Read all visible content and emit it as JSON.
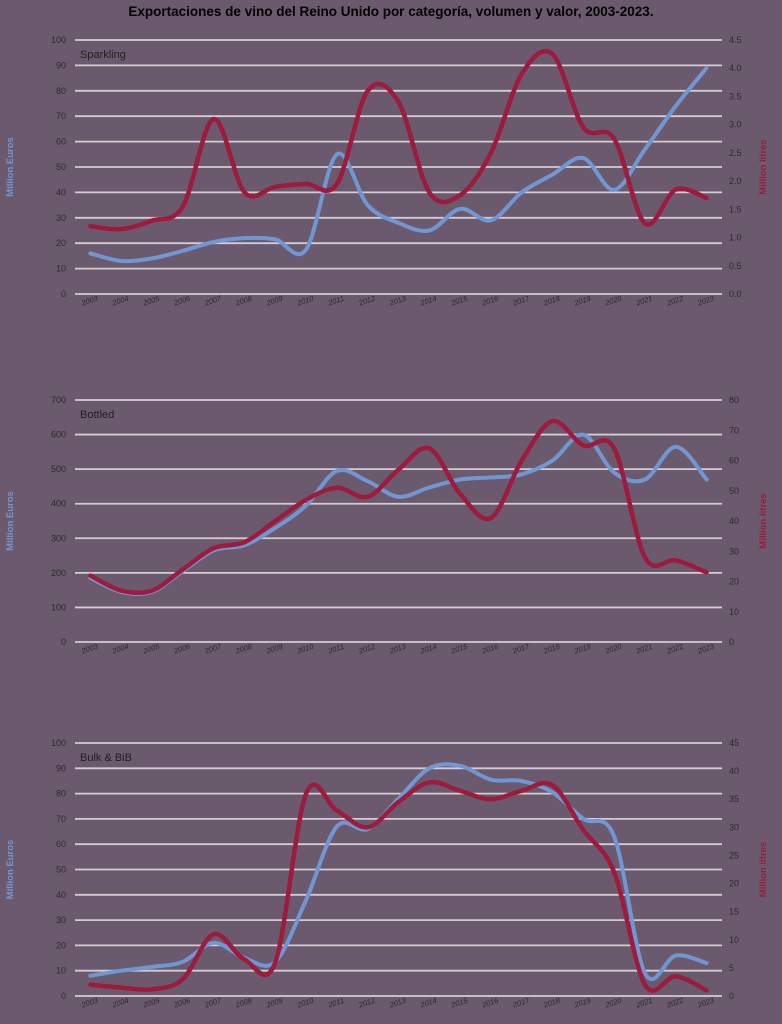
{
  "title": "Exportaciones de vino del Reino Unido por categoría, volumen y valor, 2003-2023.",
  "palette": {
    "background": "#6b5a6d",
    "gridline": "#d3cdd3",
    "value_blue": "#7097d4",
    "volume_red": "#9d1b3d",
    "tick_text": "#2b2b2b",
    "title_text": "#000000"
  },
  "chart_data": [
    {
      "type": "line",
      "title": "Sparkling",
      "years": [
        "2003",
        "2004",
        "2005",
        "2006",
        "2007",
        "2008",
        "2009",
        "2010",
        "2011",
        "2012",
        "2013",
        "2014",
        "2015",
        "2016",
        "2017",
        "2018",
        "2019",
        "2020",
        "2021",
        "2022",
        "2023"
      ],
      "left_axis": {
        "title": "Million Euros",
        "color": "#7097d4",
        "max": 100,
        "min": 0,
        "ticks": [
          "100",
          "90",
          "80",
          "70",
          "60",
          "50",
          "40",
          "30",
          "20",
          "10",
          "0"
        ]
      },
      "right_axis": {
        "title": "Million litres",
        "color": "#9d1b3d",
        "max": 4.5,
        "min": 0,
        "ticks": [
          "4.5",
          "4.0",
          "3.5",
          "3.0",
          "2.5",
          "2.0",
          "1.5",
          "1.0",
          "0.5",
          "0.0"
        ]
      },
      "series": [
        {
          "name": "value-million-euros",
          "axis": "left",
          "color": "#7097d4",
          "values": [
            16,
            13,
            14,
            17,
            20.5,
            22,
            21.5,
            17.5,
            55,
            35,
            28,
            25,
            33.5,
            29,
            40,
            47,
            53.5,
            41,
            57,
            74,
            89
          ]
        },
        {
          "name": "volume-million-litres",
          "axis": "right",
          "color": "#9d1b3d",
          "values": [
            1.2,
            1.15,
            1.3,
            1.55,
            3.1,
            1.8,
            1.9,
            1.95,
            1.95,
            3.6,
            3.4,
            1.8,
            1.75,
            2.5,
            3.9,
            4.25,
            2.95,
            2.75,
            1.25,
            1.85,
            1.7
          ]
        }
      ]
    },
    {
      "type": "line",
      "title": "Bottled",
      "years": [
        "2003",
        "2004",
        "2005",
        "2006",
        "2007",
        "2008",
        "2009",
        "2010",
        "2011",
        "2012",
        "2013",
        "2014",
        "2015",
        "2016",
        "2017",
        "2018",
        "2019",
        "2020",
        "2021",
        "2022",
        "2023"
      ],
      "left_axis": {
        "title": "Million Euros",
        "color": "#7097d4",
        "max": 700,
        "min": 0,
        "ticks": [
          "700",
          "600",
          "500",
          "400",
          "300",
          "200",
          "100",
          "0"
        ]
      },
      "right_axis": {
        "title": "Million litres",
        "color": "#9d1b3d",
        "max": 80,
        "min": 0,
        "ticks": [
          "80",
          "70",
          "60",
          "50",
          "40",
          "30",
          "20",
          "10",
          "0"
        ]
      },
      "series": [
        {
          "name": "value-million-euros",
          "axis": "left",
          "color": "#7097d4",
          "values": [
            185,
            145,
            145,
            205,
            265,
            280,
            330,
            395,
            495,
            465,
            420,
            447,
            470,
            476,
            485,
            525,
            600,
            490,
            470,
            565,
            470
          ]
        },
        {
          "name": "volume-million-litres",
          "axis": "right",
          "color": "#9d1b3d",
          "values": [
            22,
            17,
            17,
            24,
            31,
            33,
            40,
            47,
            51,
            48,
            57,
            64,
            49,
            41,
            60,
            73,
            65,
            64,
            28,
            27,
            23
          ]
        }
      ]
    },
    {
      "type": "line",
      "title": "Bulk & BiB",
      "years": [
        "2003",
        "2004",
        "2005",
        "2006",
        "2007",
        "2008",
        "2009",
        "2010",
        "2011",
        "2012",
        "2013",
        "2014",
        "2015",
        "2016",
        "2017",
        "2018",
        "2019",
        "2020",
        "2021",
        "2022",
        "2023"
      ],
      "left_axis": {
        "title": "Million Euros",
        "color": "#7097d4",
        "max": 100,
        "min": 0,
        "ticks": [
          "100",
          "90",
          "80",
          "70",
          "60",
          "50",
          "40",
          "30",
          "20",
          "10",
          "0"
        ]
      },
      "right_axis": {
        "title": "Million litres",
        "color": "#9d1b3d",
        "max": 45,
        "min": 0,
        "ticks": [
          "45",
          "40",
          "35",
          "30",
          "25",
          "20",
          "15",
          "10",
          "5",
          "0"
        ]
      },
      "series": [
        {
          "name": "value-million-euros",
          "axis": "left",
          "color": "#7097d4",
          "values": [
            8,
            10,
            11.5,
            13.5,
            21,
            15,
            13.5,
            38,
            67,
            66,
            78,
            90,
            91,
            85.5,
            85,
            80.5,
            70,
            63,
            9,
            16,
            13
          ]
        },
        {
          "name": "volume-million-litres",
          "axis": "right",
          "color": "#9d1b3d",
          "values": [
            2.0,
            1.5,
            1.2,
            3.0,
            11,
            6.5,
            6.0,
            36,
            33,
            30,
            34.5,
            38,
            36.5,
            35,
            36.5,
            37.5,
            29.5,
            22,
            2.0,
            3.5,
            1.0
          ]
        }
      ]
    }
  ]
}
